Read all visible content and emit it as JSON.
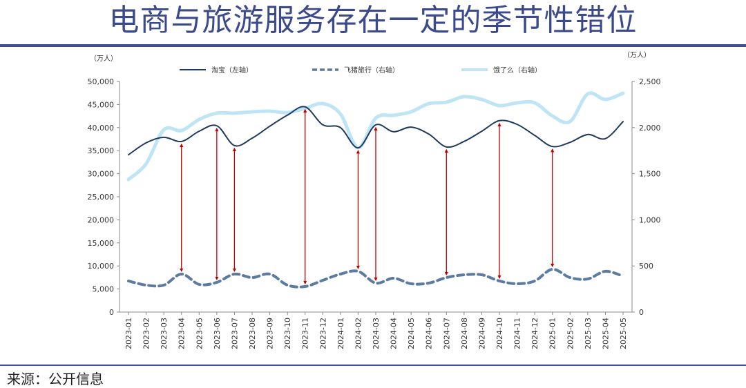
{
  "title": "电商与旅游服务存在一定的季节性错位",
  "source": "来源：公开信息",
  "chart_data": {
    "type": "line",
    "title": "电商与旅游服务存在一定的季节性错位",
    "left_unit": "（万人）",
    "right_unit": "（万人）",
    "x": [
      "2023-01",
      "2023-02",
      "2023-03",
      "2023-04",
      "2023-05",
      "2023-06",
      "2023-07",
      "2023-08",
      "2023-09",
      "2023-10",
      "2023-11",
      "2023-12",
      "2024-01",
      "2024-02",
      "2024-03",
      "2024-04",
      "2024-05",
      "2024-06",
      "2024-07",
      "2024-08",
      "2024-09",
      "2024-10",
      "2024-11",
      "2024-12",
      "2025-01",
      "2025-02",
      "2025-03",
      "2025-04",
      "2025-05"
    ],
    "ylim_left": [
      0,
      50000
    ],
    "yticks_left": [
      "0",
      "5,000",
      "10,000",
      "15,000",
      "20,000",
      "25,000",
      "30,000",
      "35,000",
      "40,000",
      "45,000",
      "50,000"
    ],
    "ylim_right": [
      0,
      2500
    ],
    "yticks_right": [
      "0",
      "500",
      "1,000",
      "1,500",
      "2,000",
      "2,500"
    ],
    "grid": false,
    "legend_placement": "top",
    "series": [
      {
        "name": "淘宝（左轴）",
        "axis": "left",
        "color": "#1f3a5f",
        "style": "solid",
        "values": [
          34100,
          36700,
          37900,
          37000,
          39200,
          40400,
          36100,
          37700,
          40300,
          42700,
          44500,
          40600,
          40000,
          35600,
          40600,
          39100,
          40100,
          38600,
          35800,
          37000,
          39200,
          41500,
          40700,
          38300,
          35900,
          36800,
          38500,
          37600,
          41300
        ]
      },
      {
        "name": "飞猪旅行（右轴）",
        "axis": "right",
        "color": "#5b7ba0",
        "style": "dashed",
        "values": [
          337,
          292,
          292,
          412,
          300,
          322,
          412,
          374,
          412,
          292,
          277,
          344,
          412,
          442,
          314,
          367,
          307,
          314,
          374,
          404,
          404,
          337,
          307,
          337,
          464,
          374,
          359,
          442,
          389
        ]
      },
      {
        "name": "饿了么（右轴）",
        "axis": "right",
        "color": "#bfe5f5",
        "style": "thick",
        "values": [
          1437,
          1609,
          1976,
          1968,
          2088,
          2156,
          2156,
          2171,
          2178,
          2163,
          2208,
          2260,
          2148,
          1781,
          2103,
          2133,
          2171,
          2260,
          2275,
          2335,
          2305,
          2238,
          2268,
          2268,
          2126,
          2066,
          2365,
          2305,
          2373
        ]
      }
    ],
    "annotation_arrows": {
      "color": "#c00000",
      "months": [
        "2023-04",
        "2023-06",
        "2023-07",
        "2023-11",
        "2024-02",
        "2024-03",
        "2024-07",
        "2024-10",
        "2025-01"
      ]
    }
  }
}
